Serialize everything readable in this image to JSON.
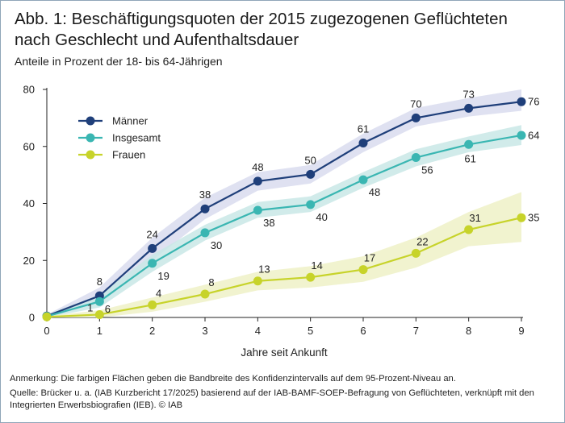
{
  "title_line1": "Abb. 1: Beschäftigungsquoten der 2015 zugezogenen Geflüchteten",
  "title_line2": "nach Geschlecht und Aufenthaltsdauer",
  "subtitle": "Anteile in Prozent der 18- bis 64-Jährigen",
  "note": "Anmerkung: Die farbigen Flächen geben die Bandbreite des Konfidenzintervalls auf dem 95-Prozent-Niveau an.",
  "source_line1": "Quelle: Brücker u. a. (IAB Kurzbericht 17/2025) basierend auf der IAB-BAMF-SOEP-Befragung von Geflüchteten, verknüpft mit den",
  "source_line2": "Integrierten Erwerbsbiografien (IEB).  © IAB",
  "chart_data": {
    "type": "line",
    "title": "Beschäftigungsquoten der 2015 zugezogenen Geflüchteten nach Geschlecht und Aufenthaltsdauer",
    "xlabel": "Jahre seit Ankunft",
    "ylabel": "Anteile in Prozent der 18- bis 64-Jährigen",
    "x": [
      0,
      1,
      2,
      3,
      4,
      5,
      6,
      7,
      8,
      9
    ],
    "x_ticks": [
      "0",
      "1",
      "2",
      "3",
      "4",
      "5",
      "6",
      "7",
      "8",
      "9"
    ],
    "xlim": [
      0,
      9
    ],
    "ylim": [
      0,
      80
    ],
    "y_ticks": [
      "0",
      "20",
      "40",
      "60",
      "80"
    ],
    "legend_position": "top-left",
    "series": [
      {
        "name": "Männer",
        "color": "#1f3f7a",
        "band_color": "#d9dcee",
        "values": [
          0.5,
          7.6,
          24.2,
          38.1,
          47.8,
          50.2,
          61.2,
          70,
          73.4,
          75.7
        ],
        "labels": [
          "",
          "8",
          "24",
          "38",
          "48",
          "50",
          "61",
          "70",
          "73",
          "76"
        ],
        "ci_low": [
          0,
          5,
          20,
          34.5,
          44.5,
          47,
          58,
          67,
          70.5,
          72.5
        ],
        "ci_high": [
          1,
          10.5,
          28,
          42,
          51,
          53.5,
          64.5,
          73.5,
          77,
          80
        ]
      },
      {
        "name": "Insgesamt",
        "color": "#3ab6b2",
        "band_color": "#c9e7e6",
        "values": [
          0.4,
          5.6,
          19.0,
          29.7,
          37.6,
          39.6,
          48.3,
          56.1,
          60.7,
          63.9
        ],
        "labels": [
          "",
          "6",
          "19",
          "30",
          "38",
          "40",
          "48",
          "56",
          "61",
          "64"
        ],
        "ci_low": [
          0,
          3.5,
          16,
          27,
          35,
          37,
          45.5,
          53,
          58,
          60.5
        ],
        "ci_high": [
          1,
          8,
          22,
          32.5,
          40.5,
          42.5,
          51,
          59,
          63.5,
          67.5
        ]
      },
      {
        "name": "Frauen",
        "color": "#c7d32a",
        "band_color": "#eef1c7",
        "values": [
          0.2,
          1.0,
          4.4,
          8.2,
          12.8,
          14.1,
          16.8,
          22.5,
          30.8,
          35.0
        ],
        "labels": [
          "",
          "1",
          "4",
          "8",
          "13",
          "14",
          "17",
          "22",
          "31",
          "35"
        ],
        "ci_low": [
          0,
          0,
          2,
          5.5,
          9.5,
          10.5,
          12.5,
          17.5,
          25,
          26.5
        ],
        "ci_high": [
          0.5,
          2.5,
          7,
          11.5,
          16,
          18,
          21.5,
          28,
          37,
          44
        ]
      }
    ],
    "zero_point_label": "0"
  }
}
